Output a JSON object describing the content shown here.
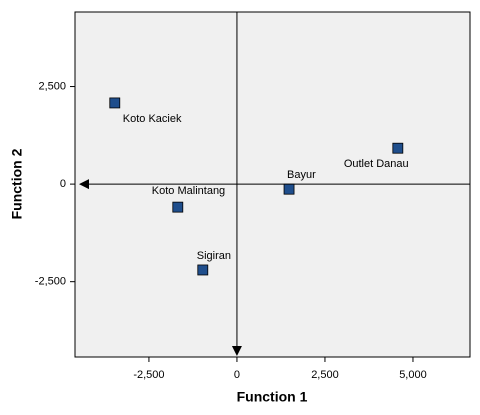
{
  "chart_data": {
    "type": "scatter",
    "x_label": "Function 1",
    "y_label": "Function 2",
    "point_labels": [
      "Koto Kaciek",
      "Outlet Danau",
      "Bayur",
      "Koto Malintang",
      "Sigiran"
    ],
    "x": [
      -3470,
      4570,
      1480,
      -1680,
      -970
    ],
    "values": [
      2080,
      920,
      -130,
      -590,
      -2200
    ],
    "color": "#1f4e8c",
    "xlim": [
      -4600,
      6620
    ],
    "ylim": [
      -4430,
      4410
    ],
    "xticks": [
      {
        "value": -2500,
        "label": "-2,500"
      },
      0,
      {
        "value": 2500,
        "label": "2,500"
      },
      {
        "value": 5000,
        "label": "5,000"
      }
    ],
    "yticks": [
      {
        "value": 2500,
        "label": "2,500"
      },
      0,
      {
        "value": -2500,
        "label": "-2,500"
      }
    ]
  }
}
